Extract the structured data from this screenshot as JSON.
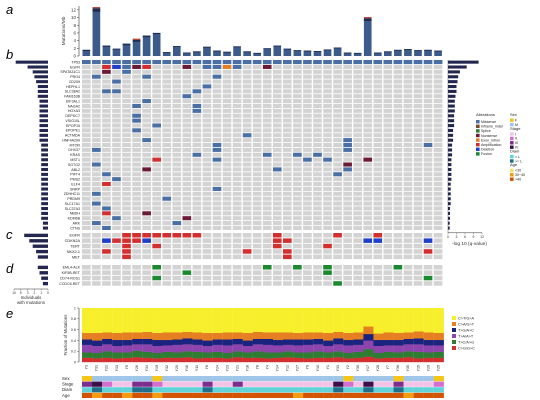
{
  "panel_labels": [
    "a",
    "b",
    "c",
    "d",
    "e"
  ],
  "samples": [
    "Y3",
    "Y31",
    "Y22",
    "Y13",
    "Y5",
    "Y26",
    "Y34",
    "Y19",
    "Y32",
    "Y20",
    "Y16",
    "Y11",
    "Y6",
    "Y24",
    "Y23",
    "Y21",
    "Y18",
    "Y8",
    "Y4",
    "Y14",
    "Y12",
    "Y27",
    "Y9",
    "Y10",
    "Y1",
    "Y33",
    "Y2",
    "Y30",
    "Y17",
    "Y28",
    "Y7",
    "Y36",
    "Y35",
    "Y15",
    "Y29",
    "Y25"
  ],
  "panel_a": {
    "ylabel": "Mutations/Mb",
    "ticks": [
      "0",
      "2",
      "4",
      "6",
      "8",
      "10",
      "12"
    ],
    "ylim": [
      0,
      13
    ],
    "values": [
      1.6,
      12.4,
      2.7,
      1.9,
      3.2,
      4.2,
      5.3,
      6.0,
      1.0,
      2.6,
      0.9,
      1.2,
      2.4,
      1.4,
      1.1,
      2.5,
      1.2,
      0.8,
      2.0,
      2.7,
      1.9,
      1.5,
      1.4,
      1.3,
      1.7,
      2.2,
      0.9,
      0.8,
      9.8,
      0.9,
      1.2,
      1.6,
      1.8,
      1.5,
      1.6,
      1.4
    ],
    "tops": [
      0.3,
      0.9,
      0.3,
      0.2,
      0.4,
      0.5,
      0.4,
      0.3,
      0.1,
      0.2,
      0.1,
      0.1,
      0.2,
      0.1,
      0.1,
      0.2,
      0.1,
      0.1,
      0.2,
      0.2,
      0.2,
      0.1,
      0.1,
      0.1,
      0.2,
      0.2,
      0.1,
      0.1,
      0.7,
      0.1,
      0.1,
      0.1,
      0.2,
      0.1,
      0.1,
      0.1
    ]
  },
  "panel_b": {
    "genes": [
      "TP53",
      "EGFR",
      "SPATA31C1",
      "PRG4",
      "CD209",
      "HEPHL1",
      "SLC38A2",
      "FAM163B",
      "EIF3AL1",
      "NAGA2",
      "HOXA3",
      "DEPDC7",
      "VSIG10L",
      "EPOP15",
      "EPOPE1",
      "ACTMDA",
      "HNF4A299",
      "MTOR",
      "DHX37",
      "KRAS",
      "MST1",
      "SGTG2",
      "ABL2",
      "PIFT4",
      "PMS2",
      "ELF4",
      "SNRP",
      "ZDHHC11",
      "PRDM9",
      "SLC17A1",
      "SLC37A3",
      "NBDH",
      "KDM6B",
      "ARK",
      "CTNS"
    ],
    "left_bars": [
      0.95,
      0.6,
      0.45,
      0.4,
      0.35,
      0.3,
      0.3,
      0.3,
      0.25,
      0.25,
      0.25,
      0.25,
      0.25,
      0.25,
      0.25,
      0.25,
      0.25,
      0.2,
      0.2,
      0.2,
      0.2,
      0.2,
      0.2,
      0.2,
      0.2,
      0.2,
      0.2,
      0.2,
      0.2,
      0.2,
      0.2,
      0.2,
      0.2,
      0.15,
      0.15
    ],
    "right_bars": [
      0.9,
      0.55,
      0.35,
      0.3,
      0.28,
      0.25,
      0.25,
      0.22,
      0.2,
      0.2,
      0.2,
      0.18,
      0.18,
      0.18,
      0.15,
      0.15,
      0.15,
      0.12,
      0.12,
      0.12,
      0.1,
      0.1,
      0.1,
      0.1,
      0.1,
      0.08,
      0.08,
      0.08,
      0.08,
      0.08,
      0.06,
      0.06,
      0.06,
      0.05,
      0.05
    ],
    "right_axis_label": "-log 10 (q-value)",
    "right_ticks": [
      "0",
      "3",
      "6",
      "9",
      "12"
    ],
    "cells": [
      "0:m,1:m,2:m,3:m,4:m,5:m,6:m,7:m,8:m,9:m,10:m,11:m,12:m,13:m,14:m,15:m,16:m,17:m,18:m,19:m,20:m,21:m,22:m,23:m,24:m,25:m,26:m,27:m,28:m,29:m,30:m,31:m,32:m,33:m,34:m,35:m",
      "2:a,3:d,4:m,5:x,6:a,10:n,12:m,13:m,14:e,15:m,18:n",
      "2:n,4:m",
      "1:m,6:m,13:m",
      "3:m",
      "12:m",
      "2:m,3:m,11:m",
      "10:m",
      "6:m",
      "5:m,11:m",
      "11:m",
      "5:m",
      "5:m",
      "7:m",
      "5:m",
      "16:m",
      "6:m,26:m",
      "13:m,26:m,34:m",
      "1:m,13:m,26:m",
      "11:m,18:m,21:m,23:m",
      "7:a,13:m,22:m,24:m,28:n",
      "1:m,26:n",
      "6:n,19:m,26:m",
      "2:m,25:m",
      "3:m",
      "2:a",
      "13:m",
      "1:m",
      "8:m",
      "1:m",
      "2:m",
      "2:a,6:x",
      "3:m,10:n",
      "1:m,9:m",
      "2:m"
    ]
  },
  "legend": {
    "alterations_title": "Alterations",
    "alterations": [
      {
        "label": "Missense",
        "color": "#4a6fa5"
      },
      {
        "label": "Inframe_indel",
        "color": "#7b4a2a"
      },
      {
        "label": "Splice",
        "color": "#2e7d32"
      },
      {
        "label": "Nonsense",
        "color": "#6d1a36"
      },
      {
        "label": "Exon_intron",
        "color": "#e67e22"
      },
      {
        "label": "Amplification",
        "color": "#d32f2f"
      },
      {
        "label": "Deletion",
        "color": "#1e3fc9"
      },
      {
        "label": "Fusion",
        "color": "#1b8a2f"
      }
    ],
    "sex_title": "Sex",
    "sex": [
      {
        "label": "F",
        "color": "#f5c518"
      },
      {
        "label": "M",
        "color": "#9fc5e8"
      }
    ],
    "stage_title": "Stage",
    "stage": [
      {
        "label": "I",
        "color": "#f4c2e6"
      },
      {
        "label": "II",
        "color": "#d26fcf"
      },
      {
        "label": "III",
        "color": "#7b2e8e"
      },
      {
        "label": "IV",
        "color": "#3a0f4a"
      }
    ],
    "diam_title": "Diam",
    "diam": [
      {
        "label": "< L",
        "color": "#5fd3d8"
      },
      {
        "label": ">= L",
        "color": "#1f6e8c"
      }
    ],
    "age_title": "Age",
    "age": [
      {
        "label": "<30",
        "color": "#f7e16b"
      },
      {
        "label": "30~40",
        "color": "#f39c12"
      },
      {
        "label": ">40",
        "color": "#d35400"
      }
    ]
  },
  "panel_c": {
    "genes": [
      "EGFR",
      "CDKN2A",
      "TERT",
      "NKX2-1",
      "MET"
    ],
    "left_bars": [
      0.7,
      0.55,
      0.45,
      0.35,
      0.3
    ],
    "cells": [
      "4:a,5:a,6:a,7:a,8:a,9:a,10:a,11:a,19:a,25:a,29:a",
      "2:d,3:a,4:a,5:a,6:d,19:a,20:a,28:d,29:d,34:d",
      "4:a,7:a,19:a,24:a",
      "2:a,4:a,16:a,20:a,34:a",
      "4:a,20:a"
    ]
  },
  "panel_d": {
    "genes": [
      "EML4-ALK",
      "KIF5B-RET",
      "CD74-ROS1",
      "CCDC6-RET"
    ],
    "left_bars": [
      0.3,
      0.25,
      0.2,
      0.15
    ],
    "cells": [
      "7:f,18:f,21:f,24:f,31:f",
      "10:f,24:f",
      "7:f,34:f",
      "25:f"
    ],
    "bottom_label_1": "Individuals",
    "bottom_label_2": "with mutations",
    "bottom_ticks": [
      "10",
      "5",
      "3",
      "2",
      "1",
      "0"
    ]
  },
  "panel_e": {
    "ylabel": "Fraction of Mutations",
    "ticks": [
      "0",
      "0.2",
      "0.4",
      "0.6",
      "0.8",
      "1"
    ],
    "substitutions": [
      {
        "label": "C>G/G>C",
        "color": "#d32f2f"
      },
      {
        "label": "T>C/A>G",
        "color": "#2e7d32"
      },
      {
        "label": "T>A/A>T",
        "color": "#8e44ad"
      },
      {
        "label": "T>G/A>C",
        "color": "#1a237e"
      },
      {
        "label": "C>A/G>T",
        "color": "#e67e22"
      },
      {
        "label": "C>T/G>A",
        "color": "#f7ef2b"
      }
    ],
    "fractions": [
      [
        0.08,
        0.1,
        0.14,
        0.1,
        0.12,
        0.46
      ],
      [
        0.07,
        0.1,
        0.13,
        0.1,
        0.14,
        0.46
      ],
      [
        0.08,
        0.12,
        0.13,
        0.1,
        0.12,
        0.45
      ],
      [
        0.07,
        0.11,
        0.12,
        0.11,
        0.13,
        0.46
      ],
      [
        0.08,
        0.1,
        0.13,
        0.1,
        0.14,
        0.45
      ],
      [
        0.09,
        0.12,
        0.12,
        0.1,
        0.12,
        0.45
      ],
      [
        0.08,
        0.11,
        0.14,
        0.1,
        0.13,
        0.44
      ],
      [
        0.07,
        0.1,
        0.13,
        0.11,
        0.13,
        0.46
      ],
      [
        0.08,
        0.11,
        0.12,
        0.1,
        0.14,
        0.45
      ],
      [
        0.08,
        0.1,
        0.14,
        0.1,
        0.13,
        0.45
      ],
      [
        0.09,
        0.11,
        0.13,
        0.11,
        0.12,
        0.44
      ],
      [
        0.07,
        0.12,
        0.13,
        0.1,
        0.13,
        0.45
      ],
      [
        0.08,
        0.1,
        0.12,
        0.1,
        0.14,
        0.46
      ],
      [
        0.08,
        0.11,
        0.13,
        0.1,
        0.12,
        0.46
      ],
      [
        0.07,
        0.1,
        0.14,
        0.11,
        0.13,
        0.45
      ],
      [
        0.09,
        0.11,
        0.13,
        0.1,
        0.12,
        0.45
      ],
      [
        0.08,
        0.1,
        0.12,
        0.1,
        0.14,
        0.46
      ],
      [
        0.08,
        0.12,
        0.13,
        0.1,
        0.13,
        0.44
      ],
      [
        0.07,
        0.11,
        0.14,
        0.11,
        0.12,
        0.45
      ],
      [
        0.08,
        0.1,
        0.13,
        0.1,
        0.14,
        0.45
      ],
      [
        0.09,
        0.11,
        0.12,
        0.1,
        0.13,
        0.45
      ],
      [
        0.08,
        0.1,
        0.13,
        0.11,
        0.12,
        0.46
      ],
      [
        0.07,
        0.11,
        0.14,
        0.1,
        0.13,
        0.45
      ],
      [
        0.08,
        0.12,
        0.13,
        0.1,
        0.12,
        0.45
      ],
      [
        0.08,
        0.1,
        0.12,
        0.1,
        0.14,
        0.46
      ],
      [
        0.09,
        0.11,
        0.13,
        0.11,
        0.12,
        0.44
      ],
      [
        0.07,
        0.1,
        0.14,
        0.1,
        0.13,
        0.46
      ],
      [
        0.08,
        0.11,
        0.13,
        0.1,
        0.13,
        0.45
      ],
      [
        0.1,
        0.14,
        0.16,
        0.12,
        0.14,
        0.34
      ],
      [
        0.07,
        0.1,
        0.13,
        0.11,
        0.12,
        0.47
      ],
      [
        0.08,
        0.11,
        0.12,
        0.1,
        0.14,
        0.45
      ],
      [
        0.08,
        0.1,
        0.13,
        0.1,
        0.13,
        0.46
      ],
      [
        0.09,
        0.11,
        0.13,
        0.1,
        0.12,
        0.45
      ],
      [
        0.07,
        0.12,
        0.14,
        0.11,
        0.13,
        0.43
      ],
      [
        0.08,
        0.1,
        0.13,
        0.1,
        0.14,
        0.45
      ],
      [
        0.08,
        0.11,
        0.12,
        0.1,
        0.13,
        0.46
      ]
    ]
  },
  "clinical": {
    "tracks": [
      "Sex",
      "Stage",
      "Diam",
      "Age"
    ],
    "sex": [
      "F",
      "M",
      "M",
      "M",
      "M",
      "M",
      "M",
      "F",
      "M",
      "M",
      "M",
      "M",
      "M",
      "M",
      "M",
      "M",
      "M",
      "M",
      "M",
      "M",
      "M",
      "M",
      "M",
      "M",
      "M",
      "M",
      "F",
      "M",
      "M",
      "M",
      "M",
      "F",
      "M",
      "M",
      "M",
      "F"
    ],
    "stage": [
      "III",
      "IV",
      "II",
      "I",
      "I",
      "III",
      "III",
      "II",
      "I",
      "I",
      "I",
      "I",
      "III",
      "I",
      "I",
      "III",
      "I",
      "I",
      "I",
      "I",
      "I",
      "I",
      "I",
      "I",
      "I",
      "IV",
      "II",
      "I",
      "IV",
      "I",
      "I",
      "III",
      "I",
      "I",
      "I",
      "II"
    ],
    "diam": [
      "< L",
      ">= L",
      "< L",
      "< L",
      "< L",
      ">= L",
      ">= L",
      "< L",
      "< L",
      "< L",
      "< L",
      "< L",
      ">= L",
      "< L",
      "< L",
      "< L",
      "< L",
      "< L",
      "< L",
      "< L",
      "< L",
      "< L",
      "< L",
      "< L",
      "< L",
      ">= L",
      "< L",
      "< L",
      ">= L",
      "< L",
      "< L",
      ">= L",
      "< L",
      "< L",
      "< L",
      "< L"
    ],
    "age": [
      ">40",
      "30~40",
      ">40",
      ">40",
      "30~40",
      ">40",
      ">40",
      "30~40",
      ">40",
      ">40",
      ">40",
      ">40",
      ">40",
      ">40",
      ">40",
      ">40",
      ">40",
      ">40",
      ">40",
      ">40",
      ">40",
      "30~40",
      ">40",
      ">40",
      ">40",
      ">40",
      ">40",
      ">40",
      ">40",
      ">40",
      ">40",
      ">40",
      "30~40",
      ">40",
      ">40",
      ">40"
    ]
  }
}
